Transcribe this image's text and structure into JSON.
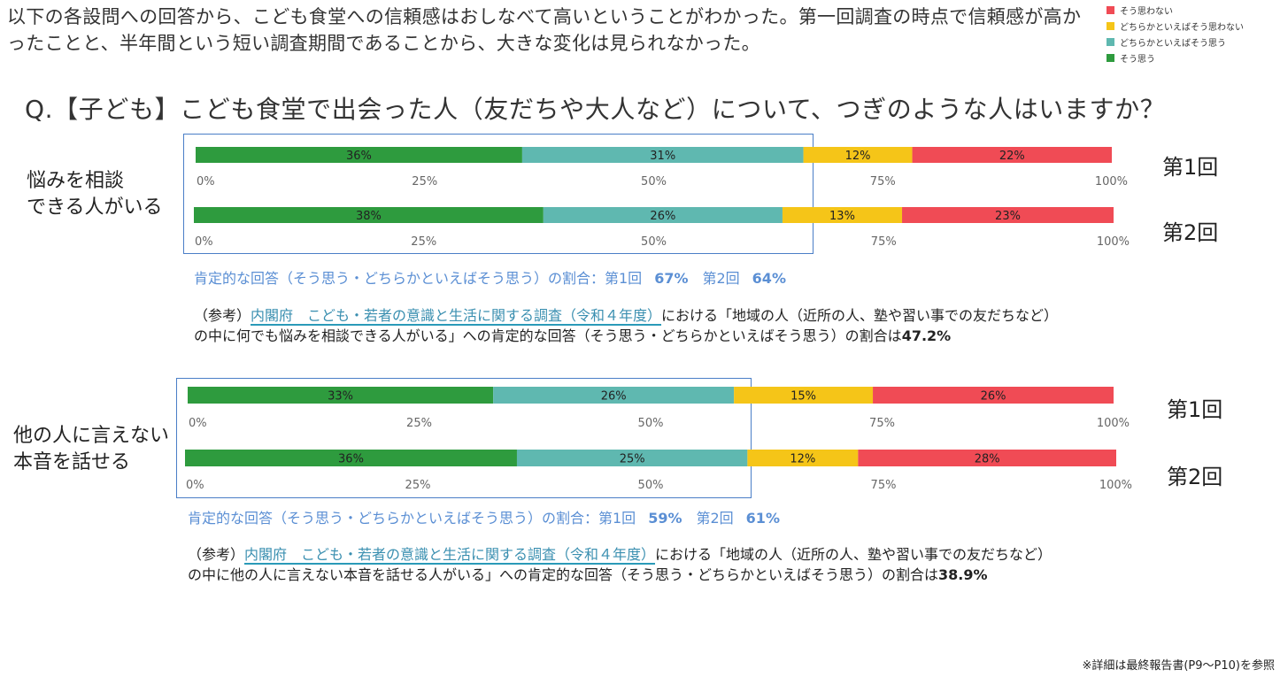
{
  "intro_text": "以下の各設問への回答から、こども食堂への信頼感はおしなべて高いということがわかった。第一回調査の時点で信頼感が高かったことと、半年間という短い調査期間であることから、大きな変化は見られなかった。",
  "legend": [
    {
      "label": "そう思わない",
      "color": "#f04b55"
    },
    {
      "label": "どちらかといえばそう思わない",
      "color": "#f5c518"
    },
    {
      "label": "どちらかといえばそう思う",
      "color": "#5fb8b0"
    },
    {
      "label": "そう思う",
      "color": "#2e9b3e"
    }
  ],
  "question": "Q.【子ども】こども食堂で出会った人（友だちや大人など）について、つぎのような人はいますか？",
  "sections": [
    {
      "label_line1": "悩みを相談",
      "label_line2": "できる人がいる",
      "summary_prefix": "肯定的な回答（そう思う・どちらかといえばそう思う）の割合：第1回",
      "round1_pct": "67%",
      "round2_label": "第2回",
      "round2_pct": "64%",
      "ref_prefix": "（参考）",
      "ref_link": "内閣府　こども・若者の意識と生活に関する調査（令和４年度）",
      "ref_mid": "における「地域の人（近所の人、塾や習い事での友だちなど）",
      "ref_line2": "の中に何でも悩みを相談できる人がいる」への肯定的な回答（そう思う・どちらかといえばそう思う）の割合は",
      "ref_value": "47.2%"
    },
    {
      "label_line1": "他の人に言えない",
      "label_line2": "本音を話せる",
      "summary_prefix": "肯定的な回答（そう思う・どちらかといえばそう思う）の割合：第1回",
      "round1_pct": "59%",
      "round2_label": "第2回",
      "round2_pct": "61%",
      "ref_prefix": "（参考）",
      "ref_link": "内閣府　こども・若者の意識と生活に関する調査（令和４年度）",
      "ref_mid": "における「地域の人（近所の人、塾や習い事での友だちなど）",
      "ref_line2": "の中に他の人に言えない本音を話せる人がいる」への肯定的な回答（そう思う・どちらかといえばそう思う）の割合は",
      "ref_value": "38.9%"
    }
  ],
  "round_labels": [
    "第1回",
    "第2回"
  ],
  "footnote": "※詳細は最終報告書(P9〜P10)を参照",
  "chart_data": {
    "type": "bar",
    "orientation": "horizontal-stacked-100",
    "categories_order": [
      "そう思う",
      "どちらかといえばそう思う",
      "どちらかといえばそう思わない",
      "そう思わない"
    ],
    "colors": [
      "#2e9b3e",
      "#5fb8b0",
      "#f5c518",
      "#f04b55"
    ],
    "axis_ticks": [
      "0%",
      "25%",
      "50%",
      "75%",
      "100%"
    ],
    "xlim": [
      0,
      100
    ],
    "groups": [
      {
        "name": "悩みを相談できる人がいる",
        "bars": [
          {
            "round": "第1回",
            "values": [
              36,
              31,
              12,
              22
            ]
          },
          {
            "round": "第2回",
            "values": [
              38,
              26,
              13,
              23
            ]
          }
        ]
      },
      {
        "name": "他の人に言えない本音を話せる",
        "bars": [
          {
            "round": "第1回",
            "values": [
              33,
              26,
              15,
              26
            ]
          },
          {
            "round": "第2回",
            "values": [
              36,
              25,
              12,
              28
            ]
          }
        ]
      }
    ]
  }
}
